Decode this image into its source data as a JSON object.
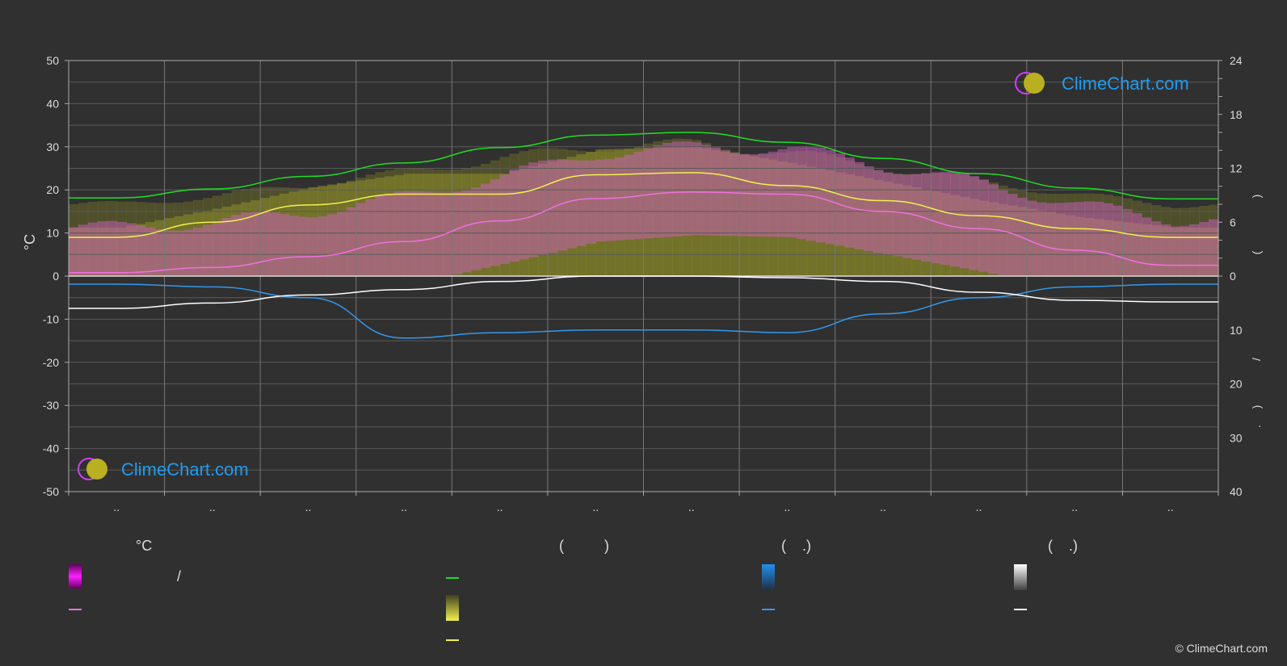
{
  "chart_data": {
    "type": "area",
    "title": "",
    "left_axis": {
      "label": "°C",
      "ticks": [
        50,
        40,
        30,
        20,
        10,
        0,
        -10,
        -20,
        -30,
        -40,
        -50
      ],
      "range": [
        -50,
        50
      ]
    },
    "right_axis_upper": {
      "ticks": [
        24,
        18,
        12,
        6,
        0
      ],
      "range": [
        0,
        24
      ]
    },
    "right_axis_lower": {
      "ticks": [
        0,
        10,
        20,
        30,
        40
      ],
      "range": [
        0,
        40
      ]
    },
    "right_axis_glyphs": [
      ")",
      "(",
      "/",
      ")",
      "."
    ],
    "x_tick_labels": [
      "..",
      "..",
      "..",
      "..",
      "..",
      "..",
      "..",
      "..",
      "..",
      "..",
      "..",
      ".."
    ],
    "months": 12,
    "series": [
      {
        "name": "",
        "color": "#22dd22",
        "axis": "daylight_hours",
        "values": [
          8.7,
          9.7,
          11.1,
          12.6,
          14.3,
          15.7,
          16.0,
          14.9,
          13.1,
          11.4,
          9.8,
          8.6
        ]
      },
      {
        "name": "",
        "color": "#f0f050",
        "axis": "celsius",
        "values": [
          9.0,
          12.5,
          16.5,
          19.0,
          19.0,
          23.5,
          24.0,
          21.0,
          17.5,
          14.0,
          11.0,
          9.0
        ]
      },
      {
        "name": "",
        "color": "#f070e0",
        "axis": "celsius",
        "values": [
          0.8,
          2.0,
          4.5,
          8.0,
          12.8,
          18.0,
          19.5,
          19.0,
          15.0,
          11.0,
          6.0,
          2.5
        ]
      },
      {
        "name": "",
        "color": "#3399ee",
        "axis": "rain",
        "values": [
          1.5,
          2.0,
          4.0,
          11.5,
          10.5,
          10.0,
          10.0,
          10.5,
          7.0,
          4.0,
          2.0,
          1.5
        ]
      },
      {
        "name": "",
        "color": "#ffffff",
        "axis": "snow",
        "values": [
          6.0,
          5.0,
          3.5,
          2.5,
          1.0,
          0.0,
          0.0,
          0.3,
          1.0,
          3.0,
          4.5,
          4.8
        ]
      }
    ]
  },
  "legend": {
    "col1_heading": "°C",
    "col1_slash": "/",
    "col2_heading": "(          )",
    "col3_heading": "(    .)",
    "col4_heading": "(    .)"
  },
  "logo": {
    "text": "ClimeChart.com"
  },
  "copyright": "© ClimeChart.com",
  "colors": {
    "background": "#303030",
    "grid": "#5a5a5a",
    "daylight": "#22dd22",
    "sunshine": "#f0f050",
    "temperature": "#f070e0",
    "rain": "#3399ee",
    "snow": "#ffffff",
    "logo": "#1f9cf0"
  }
}
